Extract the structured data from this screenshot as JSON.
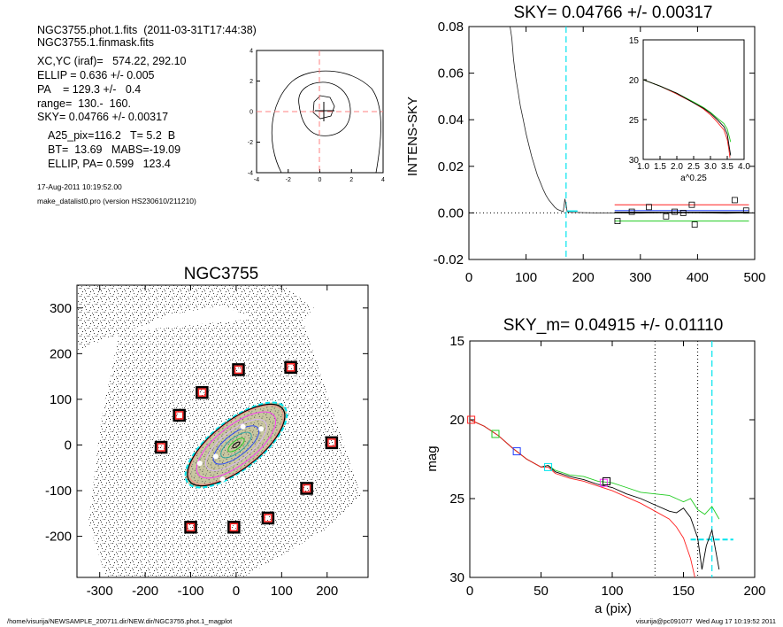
{
  "header": {
    "file_line": "NGC3755.phot.1.fits  (2011-03-31T17:44:38)",
    "mask_line": "NGC3755.1.finmask.fits",
    "params": [
      "XC,YC (iraf)=   574.22, 292.10",
      "ELLIP = 0.636 +/- 0.005",
      "PA    = 129.3 +/-   0.4",
      "range=  130.-  160.",
      "SKY= 0.04766 +/- 0.00317"
    ],
    "results": [
      "A25_pix=116.2   T= 5.2  B",
      "BT=  13.69   MABS=-19.09",
      "ELLIP, PA= 0.599   123.4"
    ],
    "date_line": "17-Aug-2011 10:19:52.00",
    "program_line": "make_datalist0.pro (version HS230610/211210)"
  },
  "footer": {
    "path": "/home/visurija/NEWSAMPLE_200711.dir/NEW.dir/NGC3755.phot.1_magplot",
    "user": "visurija@pc091077  Wed Aug 17 10:19:52 2011"
  },
  "colors": {
    "cyan": "#00e5ee",
    "red": "#ff2020",
    "green": "#22cc22",
    "blue": "#2040ff",
    "magenta": "#ff30ff",
    "dark_red": "#8b0000",
    "pink": "#ff8080"
  },
  "chart_data": [
    {
      "id": "contour-plot",
      "type": "contour",
      "xlim": [
        -4,
        4
      ],
      "ylim": [
        -4,
        4
      ],
      "xticks": [
        -4,
        -2,
        0,
        2,
        4
      ],
      "yticks": [
        -4,
        -2,
        0,
        2,
        4
      ],
      "center": [
        0,
        0
      ]
    },
    {
      "id": "sky-plot",
      "type": "line",
      "title": "SKY= 0.04766 +/- 0.00317",
      "xlabel": "",
      "ylabel": "INTENS-SKY",
      "xlim": [
        0,
        500
      ],
      "ylim": [
        -0.02,
        0.08
      ],
      "xticks": [
        0,
        100,
        200,
        300,
        400,
        500
      ],
      "yticks": [
        -0.02,
        0.0,
        0.02,
        0.04,
        0.06,
        0.08
      ],
      "ytick_labels": [
        "-0.02",
        "0.00",
        "0.02",
        "0.04",
        "0.06",
        "0.08"
      ],
      "cyan_vline": 170,
      "profile": {
        "x": [
          72,
          75,
          78,
          82,
          86,
          90,
          95,
          100,
          105,
          110,
          115,
          120,
          125,
          130,
          135,
          140,
          145,
          150,
          155,
          160,
          165,
          168,
          170,
          172,
          175,
          180,
          190,
          200,
          220,
          250,
          300,
          350,
          400,
          450,
          490
        ],
        "y": [
          0.08,
          0.075,
          0.066,
          0.058,
          0.052,
          0.046,
          0.04,
          0.034,
          0.029,
          0.024,
          0.02,
          0.016,
          0.013,
          0.01,
          0.0075,
          0.0055,
          0.004,
          0.0025,
          0.0015,
          0.001,
          0.0005,
          0.006,
          0.0035,
          0.0005,
          0.0003,
          0.0002,
          0.0002,
          0.0001,
          0.0,
          0.0,
          -0.0001,
          0.0001,
          0.0,
          -0.0002,
          0.0
        ]
      },
      "sky_squares": {
        "x": [
          260,
          285,
          315,
          345,
          360,
          375,
          390,
          395,
          465,
          485
        ],
        "y": [
          -0.0035,
          0.0005,
          0.0025,
          -0.0015,
          0.0005,
          0.0,
          0.0035,
          -0.005,
          0.0055,
          0.001
        ]
      },
      "sky_lines": [
        {
          "color": "red",
          "x": [
            255,
            490
          ],
          "y": [
            0.0035,
            0.0035
          ]
        },
        {
          "color": "black",
          "x": [
            255,
            490
          ],
          "y": [
            0.0002,
            0.0002
          ]
        },
        {
          "color": "green",
          "x": [
            255,
            490
          ],
          "y": [
            -0.0035,
            -0.0035
          ]
        },
        {
          "color": "blue",
          "x": [
            255,
            490
          ],
          "y": [
            0.001,
            0.001
          ]
        }
      ],
      "inset": {
        "xlabel": "a^0.25",
        "xlim": [
          1.0,
          4.0
        ],
        "ylim": [
          15,
          30
        ],
        "xticks": [
          1.0,
          1.5,
          2.0,
          2.5,
          3.0,
          3.5,
          4.0
        ],
        "xtick_labels": [
          "1.0",
          "1.5",
          "2.0",
          "2.5",
          "3.0",
          "3.5",
          "4.0"
        ],
        "yticks": [
          15,
          20,
          25,
          30
        ],
        "series": [
          {
            "color": "red",
            "x": [
              1.0,
              1.5,
              2.0,
              2.5,
              2.8,
              3.0,
              3.2,
              3.4,
              3.5,
              3.55,
              3.58
            ],
            "y": [
              20.0,
              20.8,
              21.8,
              22.9,
              23.7,
              24.4,
              25.3,
              26.3,
              27.5,
              28.8,
              29.8
            ]
          },
          {
            "color": "green",
            "x": [
              1.0,
              1.5,
              2.0,
              2.5,
              2.8,
              3.0,
              3.2,
              3.4,
              3.5,
              3.55,
              3.6
            ],
            "y": [
              20.0,
              20.8,
              21.7,
              22.8,
              23.5,
              24.1,
              24.8,
              25.5,
              26.2,
              27.0,
              27.8
            ]
          },
          {
            "color": "black",
            "x": [
              1.0,
              1.5,
              2.0,
              2.5,
              2.8,
              3.0,
              3.2,
              3.4,
              3.5,
              3.55,
              3.6
            ],
            "y": [
              20.0,
              20.8,
              21.7,
              22.9,
              23.6,
              24.2,
              25.0,
              25.9,
              26.8,
              28.2,
              29.5
            ]
          }
        ]
      }
    },
    {
      "id": "image-plot",
      "type": "image",
      "title": "NGC3755",
      "xlim": [
        -350,
        290
      ],
      "ylim": [
        -290,
        350
      ],
      "xticks": [
        -300,
        -200,
        -100,
        0,
        100,
        200
      ],
      "yticks": [
        -200,
        -100,
        0,
        100,
        200,
        300
      ],
      "ellipse": {
        "cx": 0,
        "cy": 0,
        "a": 135,
        "b": 54,
        "pa_deg": 38
      },
      "sky_boxes": {
        "x": [
          5,
          120,
          -75,
          -125,
          -165,
          210,
          155,
          70,
          -100,
          -5
        ],
        "y": [
          165,
          170,
          115,
          65,
          -5,
          5,
          -95,
          -160,
          -180,
          -180
        ]
      }
    },
    {
      "id": "mag-plot",
      "type": "line",
      "title": "SKY_m=  0.04915 +/- 0.01110",
      "xlabel": "a (pix)",
      "ylabel": "mag",
      "xlim": [
        0,
        200
      ],
      "ylim": [
        30,
        15
      ],
      "xticks": [
        0,
        50,
        100,
        150,
        200
      ],
      "yticks": [
        15,
        20,
        25,
        30
      ],
      "dotted_vlines": [
        130,
        160
      ],
      "cyan_vline": 170,
      "cyan_hline": {
        "x": [
          155,
          185
        ],
        "y": 27.6
      },
      "series": [
        {
          "color": "green",
          "x": [
            0,
            10,
            20,
            30,
            40,
            50,
            55,
            60,
            70,
            80,
            90,
            100,
            110,
            120,
            130,
            140,
            145,
            150,
            155,
            160,
            165,
            170,
            175
          ],
          "y": [
            20.0,
            20.4,
            21.0,
            21.8,
            22.5,
            23.0,
            22.9,
            23.2,
            23.5,
            23.6,
            23.9,
            24.0,
            24.3,
            24.6,
            24.7,
            24.8,
            25.0,
            25.2,
            25.0,
            25.7,
            26.0,
            25.5,
            26.3
          ]
        },
        {
          "color": "black",
          "x": [
            0,
            10,
            20,
            30,
            40,
            50,
            55,
            60,
            70,
            80,
            90,
            100,
            110,
            120,
            130,
            140,
            145,
            150,
            155,
            160,
            163,
            166,
            170,
            175
          ],
          "y": [
            20.0,
            20.4,
            21.0,
            21.8,
            22.5,
            23.0,
            22.9,
            23.3,
            23.6,
            23.8,
            24.1,
            24.3,
            24.7,
            25.0,
            25.4,
            25.8,
            25.9,
            25.6,
            26.2,
            27.5,
            29.5,
            28.0,
            27.0,
            29.5
          ]
        },
        {
          "color": "red",
          "x": [
            0,
            10,
            20,
            30,
            40,
            50,
            55,
            60,
            70,
            80,
            90,
            100,
            110,
            120,
            130,
            140,
            145,
            150,
            155,
            158
          ],
          "y": [
            20.0,
            20.4,
            21.0,
            21.8,
            22.5,
            23.0,
            23.0,
            23.4,
            23.7,
            23.9,
            24.2,
            24.5,
            24.9,
            25.3,
            25.8,
            26.3,
            26.8,
            27.5,
            28.8,
            30.0
          ]
        }
      ],
      "markers": [
        {
          "color": "red",
          "x": 1,
          "y": 20.0
        },
        {
          "color": "green",
          "x": 18,
          "y": 20.9
        },
        {
          "color": "blue",
          "x": 33,
          "y": 22.0
        },
        {
          "color": "cyan",
          "x": 55,
          "y": 23.0
        },
        {
          "color": "magenta",
          "x": 94,
          "y": 24.0
        },
        {
          "color": "black",
          "x": 96,
          "y": 23.9
        }
      ]
    }
  ]
}
